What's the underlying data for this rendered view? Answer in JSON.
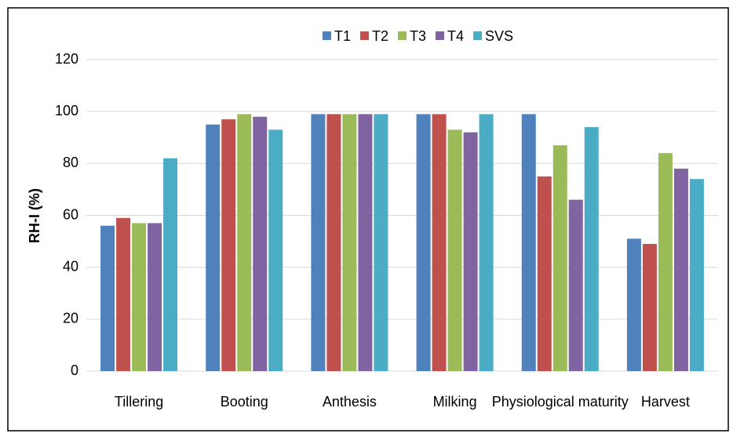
{
  "chart_data": {
    "type": "bar",
    "y_label": "RH-I (%)",
    "categories": [
      "Tillering",
      "Booting",
      "Anthesis",
      "Milking",
      "Physiological maturity",
      "Harvest"
    ],
    "series": [
      {
        "name": "T1",
        "color": "#4f81bd",
        "values": [
          56,
          95,
          99,
          99,
          99,
          51
        ]
      },
      {
        "name": "T2",
        "color": "#c0504d",
        "values": [
          59,
          97,
          99,
          99,
          75,
          49
        ]
      },
      {
        "name": "T3",
        "color": "#9bbb59",
        "values": [
          57,
          99,
          99,
          93,
          87,
          84
        ]
      },
      {
        "name": "T4",
        "color": "#8064a2",
        "values": [
          57,
          98,
          99,
          92,
          66,
          78
        ]
      },
      {
        "name": "SVS",
        "color": "#4bacc6",
        "values": [
          82,
          93,
          99,
          99,
          94,
          74
        ]
      }
    ],
    "ylim": [
      0,
      120
    ],
    "yticks": [
      0,
      20,
      40,
      60,
      80,
      100,
      120
    ],
    "grid": true,
    "legend": "top"
  }
}
